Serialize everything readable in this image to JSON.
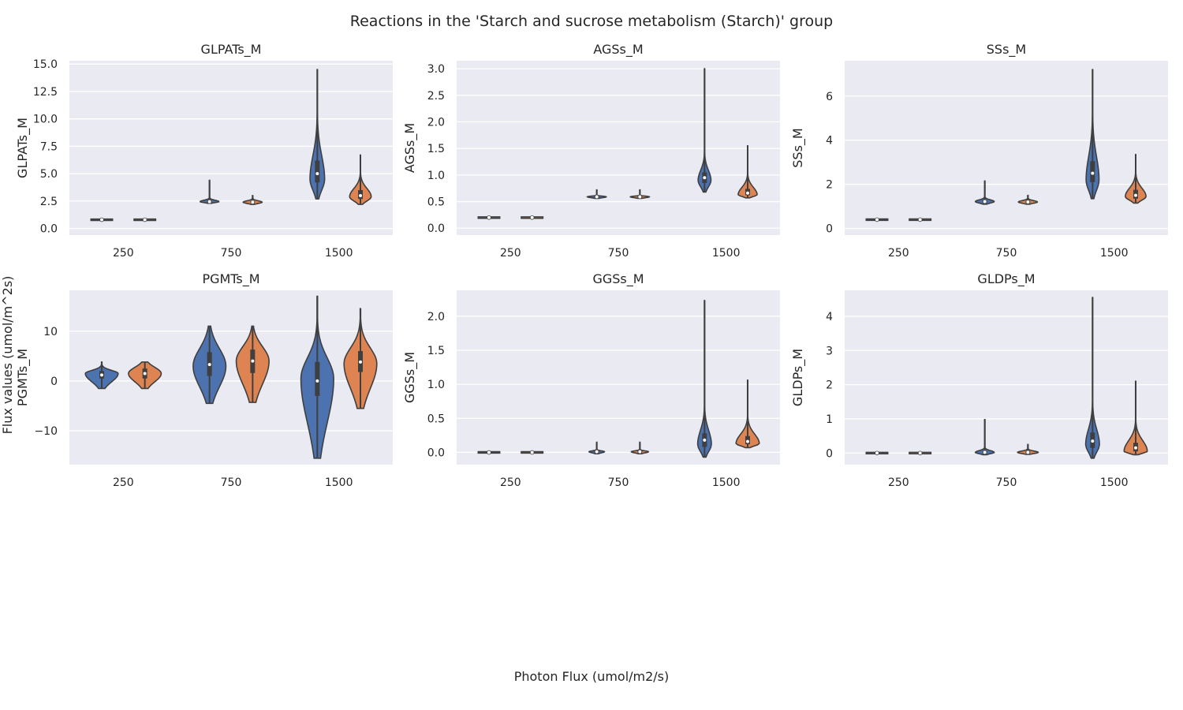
{
  "figure": {
    "title": "Reactions in the 'Starch and sucrose metabolism (Starch)' group",
    "xlabel": "Photon Flux (umol/m2/s)",
    "ylabel": "Flux values (umol/m^2s)"
  },
  "colors": {
    "hue_a": "#4c72b0",
    "hue_b": "#dd8452",
    "background": "#eaeaf2",
    "grid": "#ffffff"
  },
  "chart_data": [
    {
      "type": "violin",
      "title": "GLPATs_M",
      "ylabel": "GLPATs_M",
      "categories": [
        "250",
        "750",
        "1500"
      ],
      "ylim": [
        -0.6,
        15.3
      ],
      "yticks": [
        0,
        2.5,
        5,
        7.5,
        10,
        12.5,
        15
      ],
      "ytick_labels": [
        "0.0",
        "2.5",
        "5.0",
        "7.5",
        "10.0",
        "12.5",
        "15.0"
      ],
      "series": [
        {
          "values": [
            {
              "min": 0.8,
              "q1": 0.8,
              "median": 0.8,
              "q3": 0.8,
              "max": 0.8,
              "mode": 0.8,
              "width": 0.5
            },
            {
              "min": 2.3,
              "q1": 2.4,
              "median": 2.45,
              "q3": 2.55,
              "max": 4.4,
              "mode": 2.45,
              "width": 0.44
            },
            {
              "min": 2.7,
              "q1": 4.2,
              "median": 5.0,
              "q3": 6.2,
              "max": 14.5,
              "mode": 4.5,
              "width": 0.34
            }
          ]
        },
        {
          "values": [
            {
              "min": 0.8,
              "q1": 0.8,
              "median": 0.8,
              "q3": 0.8,
              "max": 0.8,
              "mode": 0.8,
              "width": 0.5
            },
            {
              "min": 2.2,
              "q1": 2.35,
              "median": 2.4,
              "q3": 2.5,
              "max": 3.0,
              "mode": 2.4,
              "width": 0.44
            },
            {
              "min": 2.2,
              "q1": 2.7,
              "median": 3.0,
              "q3": 3.5,
              "max": 6.7,
              "mode": 2.9,
              "width": 0.5
            }
          ]
        }
      ]
    },
    {
      "type": "violin",
      "title": "AGSs_M",
      "ylabel": "AGSs_M",
      "categories": [
        "250",
        "750",
        "1500"
      ],
      "ylim": [
        -0.13,
        3.15
      ],
      "yticks": [
        0,
        0.5,
        1,
        1.5,
        2,
        2.5,
        3
      ],
      "ytick_labels": [
        "0.0",
        "0.5",
        "1.0",
        "1.5",
        "2.0",
        "2.5",
        "3.0"
      ],
      "series": [
        {
          "values": [
            {
              "min": 0.2,
              "q1": 0.2,
              "median": 0.2,
              "q3": 0.2,
              "max": 0.2,
              "mode": 0.2,
              "width": 0.5
            },
            {
              "min": 0.56,
              "q1": 0.58,
              "median": 0.59,
              "q3": 0.6,
              "max": 0.72,
              "mode": 0.59,
              "width": 0.44
            },
            {
              "min": 0.68,
              "q1": 0.85,
              "median": 0.95,
              "q3": 1.05,
              "max": 3.0,
              "mode": 0.9,
              "width": 0.3
            }
          ]
        },
        {
          "values": [
            {
              "min": 0.2,
              "q1": 0.2,
              "median": 0.2,
              "q3": 0.2,
              "max": 0.2,
              "mode": 0.2,
              "width": 0.5
            },
            {
              "min": 0.56,
              "q1": 0.58,
              "median": 0.59,
              "q3": 0.6,
              "max": 0.72,
              "mode": 0.59,
              "width": 0.44
            },
            {
              "min": 0.57,
              "q1": 0.62,
              "median": 0.66,
              "q3": 0.74,
              "max": 1.55,
              "mode": 0.63,
              "width": 0.44
            }
          ]
        }
      ]
    },
    {
      "type": "violin",
      "title": "SSs_M",
      "ylabel": "SSs_M",
      "categories": [
        "250",
        "750",
        "1500"
      ],
      "ylim": [
        -0.3,
        7.6
      ],
      "yticks": [
        0,
        2,
        4,
        6
      ],
      "ytick_labels": [
        "0",
        "2",
        "4",
        "6"
      ],
      "series": [
        {
          "values": [
            {
              "min": 0.4,
              "q1": 0.4,
              "median": 0.4,
              "q3": 0.4,
              "max": 0.4,
              "mode": 0.4,
              "width": 0.5
            },
            {
              "min": 1.1,
              "q1": 1.18,
              "median": 1.22,
              "q3": 1.28,
              "max": 2.15,
              "mode": 1.22,
              "width": 0.44
            },
            {
              "min": 1.35,
              "q1": 2.1,
              "median": 2.5,
              "q3": 3.05,
              "max": 7.2,
              "mode": 2.2,
              "width": 0.3
            }
          ]
        },
        {
          "values": [
            {
              "min": 0.4,
              "q1": 0.4,
              "median": 0.4,
              "q3": 0.4,
              "max": 0.4,
              "mode": 0.4,
              "width": 0.5
            },
            {
              "min": 1.1,
              "q1": 1.16,
              "median": 1.2,
              "q3": 1.25,
              "max": 1.5,
              "mode": 1.2,
              "width": 0.44
            },
            {
              "min": 1.15,
              "q1": 1.35,
              "median": 1.5,
              "q3": 1.75,
              "max": 3.35,
              "mode": 1.45,
              "width": 0.48
            }
          ]
        }
      ]
    },
    {
      "type": "violin",
      "title": "PGMTs_M",
      "ylabel": "PGMTs_M",
      "categories": [
        "250",
        "750",
        "1500"
      ],
      "ylim": [
        -16.8,
        18.2
      ],
      "yticks": [
        -10,
        0,
        10
      ],
      "ytick_labels": [
        "−10",
        "0",
        "10"
      ],
      "series": [
        {
          "values": [
            {
              "min": -1.5,
              "q1": 0.5,
              "median": 1.2,
              "q3": 2.0,
              "max": 3.8,
              "mode": 1.5,
              "width": 0.76
            },
            {
              "min": -4.5,
              "q1": 1.0,
              "median": 3.3,
              "q3": 5.8,
              "max": 11.0,
              "mode": 3.0,
              "width": 0.76
            },
            {
              "min": -15.5,
              "q1": -3.0,
              "median": 0.0,
              "q3": 3.8,
              "max": 17.0,
              "mode": 0.5,
              "width": 0.76
            }
          ]
        },
        {
          "values": [
            {
              "min": -1.5,
              "q1": 0.5,
              "median": 1.5,
              "q3": 2.5,
              "max": 3.8,
              "mode": 1.5,
              "width": 0.76
            },
            {
              "min": -4.3,
              "q1": 1.6,
              "median": 4.0,
              "q3": 6.3,
              "max": 11.0,
              "mode": 4.0,
              "width": 0.76
            },
            {
              "min": -5.5,
              "q1": 1.8,
              "median": 3.8,
              "q3": 6.0,
              "max": 14.5,
              "mode": 3.5,
              "width": 0.76
            }
          ]
        }
      ]
    },
    {
      "type": "violin",
      "title": "GGSs_M",
      "ylabel": "GGSs_M",
      "categories": [
        "250",
        "750",
        "1500"
      ],
      "ylim": [
        -0.18,
        2.38
      ],
      "yticks": [
        0,
        0.5,
        1,
        1.5,
        2
      ],
      "ytick_labels": [
        "0.0",
        "0.5",
        "1.0",
        "1.5",
        "2.0"
      ],
      "series": [
        {
          "values": [
            {
              "min": 0.0,
              "q1": 0.0,
              "median": 0.0,
              "q3": 0.0,
              "max": 0.0,
              "mode": 0.0,
              "width": 0.5
            },
            {
              "min": -0.02,
              "q1": 0.0,
              "median": 0.01,
              "q3": 0.02,
              "max": 0.15,
              "mode": 0.01,
              "width": 0.36
            },
            {
              "min": -0.07,
              "q1": 0.08,
              "median": 0.18,
              "q3": 0.28,
              "max": 2.23,
              "mode": 0.12,
              "width": 0.32
            }
          ]
        },
        {
          "values": [
            {
              "min": 0.0,
              "q1": 0.0,
              "median": 0.0,
              "q3": 0.0,
              "max": 0.0,
              "mode": 0.0,
              "width": 0.5
            },
            {
              "min": -0.02,
              "q1": 0.0,
              "median": 0.01,
              "q3": 0.02,
              "max": 0.15,
              "mode": 0.01,
              "width": 0.4
            },
            {
              "min": 0.07,
              "q1": 0.12,
              "median": 0.16,
              "q3": 0.24,
              "max": 1.06,
              "mode": 0.13,
              "width": 0.54
            }
          ]
        }
      ]
    },
    {
      "type": "violin",
      "title": "GLDPs_M",
      "ylabel": "GLDPs_M",
      "categories": [
        "250",
        "750",
        "1500"
      ],
      "ylim": [
        -0.34,
        4.76
      ],
      "yticks": [
        0,
        1,
        2,
        3,
        4
      ],
      "ytick_labels": [
        "0",
        "1",
        "2",
        "3",
        "4"
      ],
      "series": [
        {
          "values": [
            {
              "min": 0.0,
              "q1": 0.0,
              "median": 0.0,
              "q3": 0.0,
              "max": 0.0,
              "mode": 0.0,
              "width": 0.5
            },
            {
              "min": -0.05,
              "q1": 0.0,
              "median": 0.02,
              "q3": 0.06,
              "max": 0.98,
              "mode": 0.02,
              "width": 0.44
            },
            {
              "min": -0.15,
              "q1": 0.15,
              "median": 0.35,
              "q3": 0.6,
              "max": 4.55,
              "mode": 0.25,
              "width": 0.32
            }
          ]
        },
        {
          "values": [
            {
              "min": 0.0,
              "q1": 0.0,
              "median": 0.0,
              "q3": 0.0,
              "max": 0.0,
              "mode": 0.0,
              "width": 0.5
            },
            {
              "min": -0.04,
              "q1": 0.0,
              "median": 0.02,
              "q3": 0.05,
              "max": 0.25,
              "mode": 0.02,
              "width": 0.48
            },
            {
              "min": -0.05,
              "q1": 0.05,
              "median": 0.15,
              "q3": 0.3,
              "max": 2.1,
              "mode": 0.05,
              "width": 0.54
            }
          ]
        }
      ]
    }
  ]
}
